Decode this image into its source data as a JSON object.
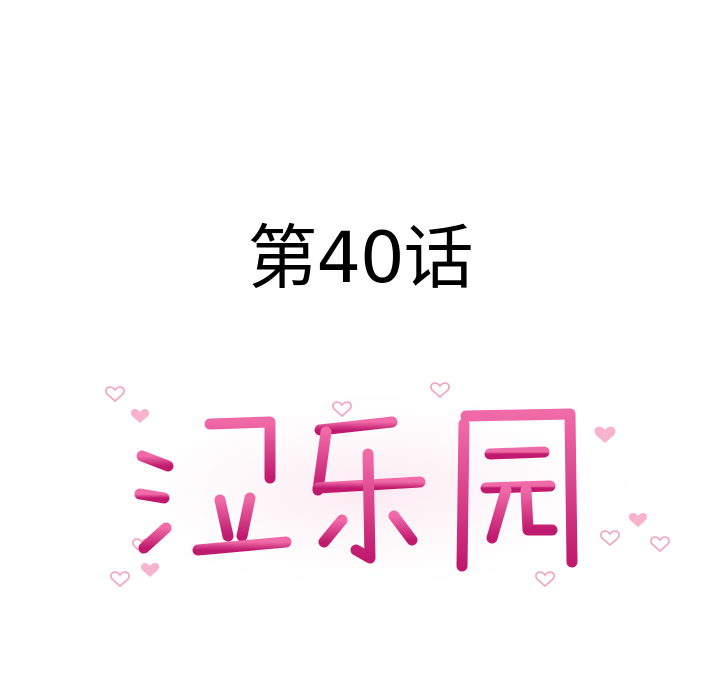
{
  "chapter": {
    "title": "第40话"
  },
  "logo": {
    "text": "湿乐园",
    "stroke_color_light": "#f06aa8",
    "stroke_color_dark": "#c01a6e",
    "heart_color": "#f4a6c4"
  }
}
